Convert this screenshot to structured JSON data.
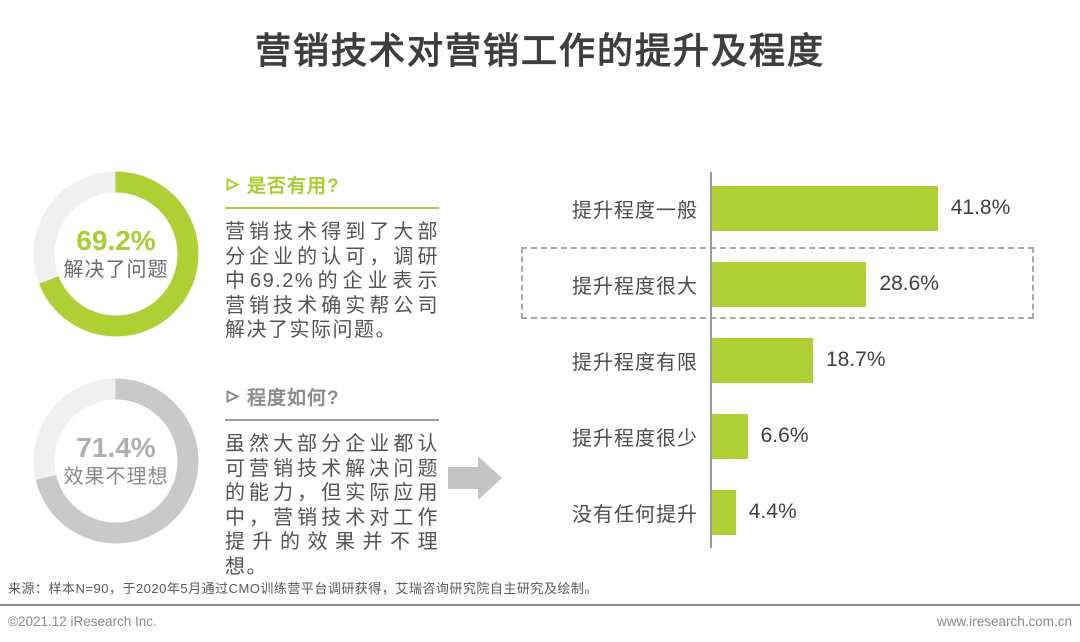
{
  "page": {
    "title": "营销技术对营销工作的提升及程度",
    "source": "来源：样本N=90，于2020年5月通过CMO训练营平台调研获得，艾瑞咨询研究院自主研究及绘制。",
    "footer_left": "©2021.12 iResearch Inc.",
    "footer_right": "www.iresearch.com.cn"
  },
  "colors": {
    "green": "#aed035",
    "ring_track": "#f0f0f0",
    "gray_ring": "#c9c9c9",
    "axis": "#9b9b9b",
    "arrow": "#c4c4c4"
  },
  "donuts": [
    {
      "value": 69.2,
      "value_label": "69.2%",
      "label": "解决了问题",
      "ring_color": "#aed035",
      "track_color": "#f0f0f0",
      "value_color": "#a8cd35",
      "label_color": "#6b6b6b"
    },
    {
      "value": 71.4,
      "value_label": "71.4%",
      "label": "效果不理想",
      "ring_color": "#c9c9c9",
      "track_color": "#f0f0f0",
      "value_color": "#afafaf",
      "label_color": "#8a8a8a"
    }
  ],
  "insights": [
    {
      "heading": "是否有用?",
      "body": "营销技术得到了大部分企业的认可，调研中69.2%的企业表示营销技术确实帮公司解决了实际问题。",
      "accent": "#a8cd35",
      "rule_color": "#aed035",
      "arrow_icon": "right-arrowhead"
    },
    {
      "heading": "程度如何?",
      "body": "虽然大部分企业都认可营销技术解决问题的能力，但实际应用中，营销技术对工作提升的效果并不理想。",
      "accent": "#8c8c8c",
      "rule_color": "#9e9e9e",
      "arrow_icon": "right-arrowhead"
    }
  ],
  "chart_data": {
    "type": "bar",
    "orientation": "horizontal",
    "title": "营销技术对营销工作的提升及程度",
    "categories": [
      "提升程度一般",
      "提升程度很大",
      "提升程度有限",
      "提升程度很少",
      "没有任何提升"
    ],
    "values": [
      41.8,
      28.6,
      18.7,
      6.6,
      4.4
    ],
    "value_labels": [
      "41.8%",
      "28.6%",
      "18.7%",
      "6.6%",
      "4.4%"
    ],
    "unit": "%",
    "xlim": [
      0,
      50
    ],
    "grid": false,
    "legend": false,
    "bar_color": "#aed035",
    "highlight_index": 1
  }
}
